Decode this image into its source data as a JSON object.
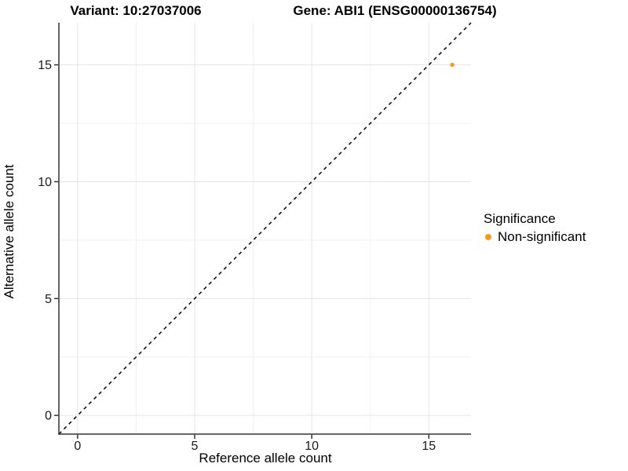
{
  "figure": {
    "background": "#FFFFFF"
  },
  "chart_data": {
    "type": "scatter",
    "titles": {
      "left": "Variant: 10:27037006",
      "right": "Gene: ABI1 (ENSG00000136754)"
    },
    "xlabel": "Reference allele count",
    "ylabel": "Alternative allele count",
    "xlim": [
      -0.8,
      16.8
    ],
    "ylim": [
      -0.8,
      16.8
    ],
    "x_ticks": [
      0,
      5,
      10,
      15
    ],
    "y_ticks": [
      0,
      5,
      10,
      15
    ],
    "x_minor_ticks": [
      2.5,
      7.5,
      12.5
    ],
    "y_minor_ticks": [
      2.5,
      7.5,
      12.5
    ],
    "grid": "white panel with light grey major and minor gridlines, dark left and bottom axis lines",
    "series": [
      {
        "name": "Non-significant",
        "color": "#F89B1B",
        "points": [
          {
            "x": 16,
            "y": 15
          }
        ]
      }
    ],
    "reference_line": {
      "description": "y = x identity line",
      "style": "dashed",
      "color": "#111111"
    },
    "legend": {
      "title": "Significance",
      "position": "right",
      "entries": [
        {
          "label": "Non-significant",
          "color": "#F89B1B"
        }
      ]
    },
    "colors": {
      "grid_major": "#E4E4E4",
      "grid_minor": "#F0F0F0",
      "axis_line": "#333333",
      "tick_text": "#1A1A1A"
    }
  }
}
